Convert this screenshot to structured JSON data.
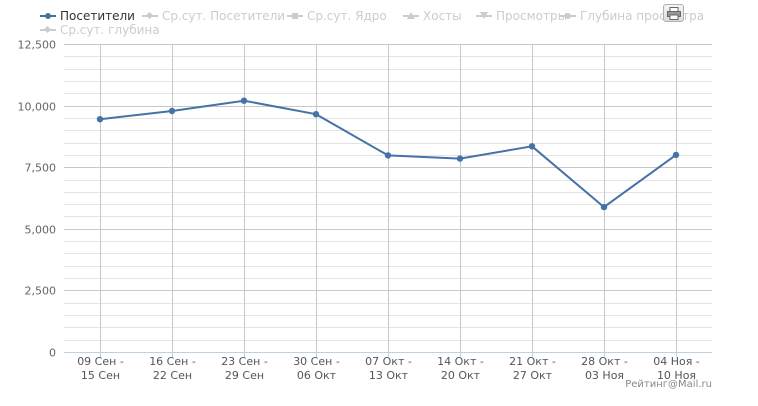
{
  "legend": {
    "items": [
      {
        "label": "Посетители",
        "active": true,
        "color": "#4572a7",
        "marker": "circle"
      },
      {
        "label": "Ср.сут. Посетители",
        "active": false,
        "color": "#cccccc",
        "marker": "diamond"
      },
      {
        "label": "Ср.сут. Ядро",
        "active": false,
        "color": "#cccccc",
        "marker": "square"
      },
      {
        "label": "Хосты",
        "active": false,
        "color": "#cccccc",
        "marker": "triangle"
      },
      {
        "label": "Просмотры",
        "active": false,
        "color": "#cccccc",
        "marker": "triangle-down"
      },
      {
        "label": "Глубина просмотра",
        "active": false,
        "color": "#cccccc",
        "marker": "circle"
      },
      {
        "label": "Ср.сут. глубина",
        "active": false,
        "color": "#cccccc",
        "marker": "diamond"
      }
    ]
  },
  "credit": "Рейтинг@Mail.ru",
  "chart_data": {
    "type": "line",
    "categories": [
      "09 Сен - 15 Сен",
      "16 Сен - 22 Сен",
      "23 Сен - 29 Сен",
      "30 Сен - 06 Окт",
      "07 Окт - 13 Окт",
      "14 Окт - 20 Окт",
      "21 Окт - 27 Окт",
      "28 Окт - 03 Ноя",
      "04 Ноя - 10 Ноя"
    ],
    "category_lines": [
      [
        "09 Сен -",
        "15 Сен"
      ],
      [
        "16 Сен -",
        "22 Сен"
      ],
      [
        "23 Сен -",
        "29 Сен"
      ],
      [
        "30 Сен -",
        "06 Окт"
      ],
      [
        "07 Окт -",
        "13 Окт"
      ],
      [
        "14 Окт -",
        "20 Окт"
      ],
      [
        "21 Окт -",
        "27 Окт"
      ],
      [
        "28 Окт -",
        "03 Ноя"
      ],
      [
        "04 Ноя -",
        "10 Ноя"
      ]
    ],
    "series": [
      {
        "name": "Посетители",
        "color": "#4572a7",
        "values": [
          9450,
          9780,
          10200,
          9650,
          7980,
          7850,
          8350,
          5880,
          8000
        ]
      }
    ],
    "ylim": [
      0,
      12500
    ],
    "yticks": [
      0,
      2500,
      5000,
      7500,
      10000,
      12500
    ],
    "ytick_labels": [
      "0",
      "2,500",
      "5,000",
      "7,500",
      "10,000",
      "12,500"
    ],
    "minor_grid_step": 500,
    "grid": true,
    "title": "",
    "xlabel": "",
    "ylabel": ""
  }
}
